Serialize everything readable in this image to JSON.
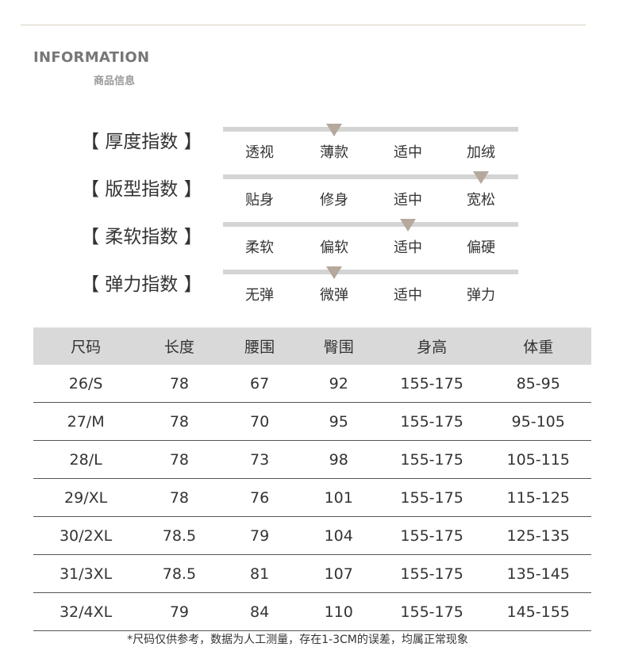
{
  "header": {
    "title_en": "INFORMATION",
    "title_cn": "商品信息"
  },
  "indices": [
    {
      "label": "【 厚度指数 】",
      "options": [
        "透视",
        "薄款",
        "适中",
        "加绒"
      ],
      "selected": 1
    },
    {
      "label": "【 版型指数 】",
      "options": [
        "贴身",
        "修身",
        "适中",
        "宽松"
      ],
      "selected": 3
    },
    {
      "label": "【 柔软指数 】",
      "options": [
        "柔软",
        "偏软",
        "适中",
        "偏硬"
      ],
      "selected": 2
    },
    {
      "label": "【 弹力指数 】",
      "options": [
        "无弹",
        "微弹",
        "适中",
        "弹力"
      ],
      "selected": 1
    }
  ],
  "colors": {
    "marker": "#b5a89c",
    "bar": "#d4d4d4",
    "header_bg": "#d9d9d9"
  },
  "table": {
    "headers": [
      "尺码",
      "长度",
      "腰围",
      "臀围",
      "身高",
      "体重"
    ],
    "rows": [
      [
        "26/S",
        "78",
        "67",
        "92",
        "155-175",
        "85-95"
      ],
      [
        "27/M",
        "78",
        "70",
        "95",
        "155-175",
        "95-105"
      ],
      [
        "28/L",
        "78",
        "73",
        "98",
        "155-175",
        "105-115"
      ],
      [
        "29/XL",
        "78",
        "76",
        "101",
        "155-175",
        "115-125"
      ],
      [
        "30/2XL",
        "78.5",
        "79",
        "104",
        "155-175",
        "125-135"
      ],
      [
        "31/3XL",
        "78.5",
        "81",
        "107",
        "155-175",
        "135-145"
      ],
      [
        "32/4XL",
        "79",
        "84",
        "110",
        "155-175",
        "145-155"
      ]
    ]
  },
  "note": "*尺码仅供参考，数据为人工测量，存在1-3CM的误差，均属正常现象"
}
